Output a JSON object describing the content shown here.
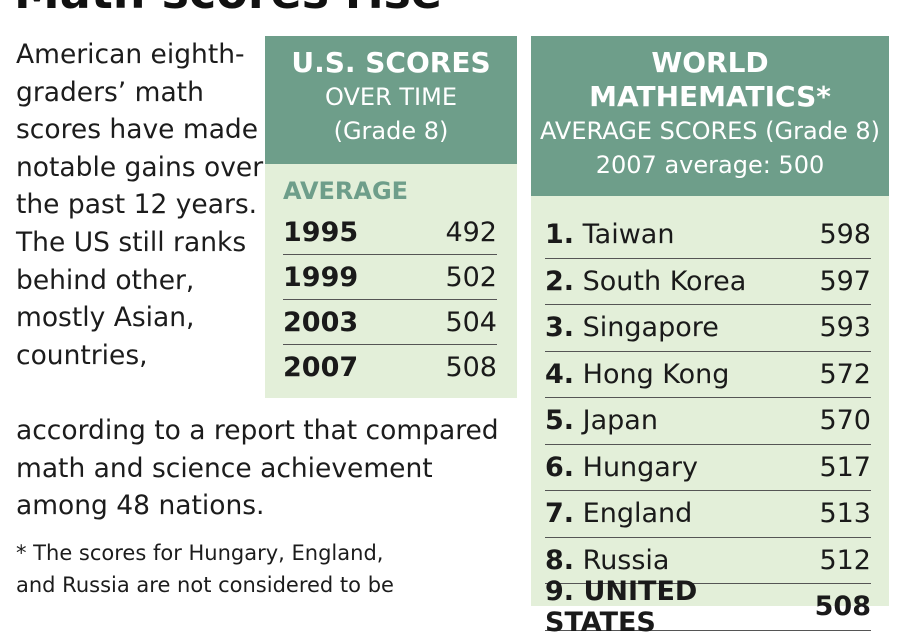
{
  "headline": "Math scores rise",
  "intro": {
    "text_narrow": "American eighth-graders’ math scores have made notable gains over the past 12 years. The US still ranks behind other, mostly Asian, countries,",
    "text_wide": "according to a report that compared math and science achievement among 48 nations."
  },
  "footnote": {
    "line1": "* The scores for Hungary, England,",
    "line2": "and Russia are not considered to be"
  },
  "us_panel": {
    "title": "U.S. SCORES",
    "subtitle": "OVER TIME",
    "grade": "(Grade 8)",
    "column_label": "AVERAGE",
    "rows": [
      {
        "year": "1995",
        "score": "492"
      },
      {
        "year": "1999",
        "score": "502"
      },
      {
        "year": "2003",
        "score": "504"
      },
      {
        "year": "2007",
        "score": "508"
      }
    ]
  },
  "world_panel": {
    "title_line1": "WORLD",
    "title_line2": "MATHEMATICS*",
    "subtitle": "AVERAGE SCORES (Grade 8)",
    "average_note": "2007 average: 500",
    "rows": [
      {
        "rank": "1.",
        "country": "Taiwan",
        "score": "598"
      },
      {
        "rank": "2.",
        "country": "South Korea",
        "score": "597"
      },
      {
        "rank": "3.",
        "country": "Singapore",
        "score": "593"
      },
      {
        "rank": "4.",
        "country": "Hong Kong",
        "score": "572"
      },
      {
        "rank": "5.",
        "country": "Japan",
        "score": "570"
      },
      {
        "rank": "6.",
        "country": "Hungary",
        "score": "517"
      },
      {
        "rank": "7.",
        "country": "England",
        "score": "513"
      },
      {
        "rank": "8.",
        "country": "Russia",
        "score": "512"
      },
      {
        "rank": "9.",
        "country": "UNITED STATES",
        "score": "508"
      }
    ]
  },
  "colors": {
    "header_bg": "#6e9e8a",
    "panel_bg": "#e3efd9",
    "accent_text": "#6e9e8a"
  }
}
